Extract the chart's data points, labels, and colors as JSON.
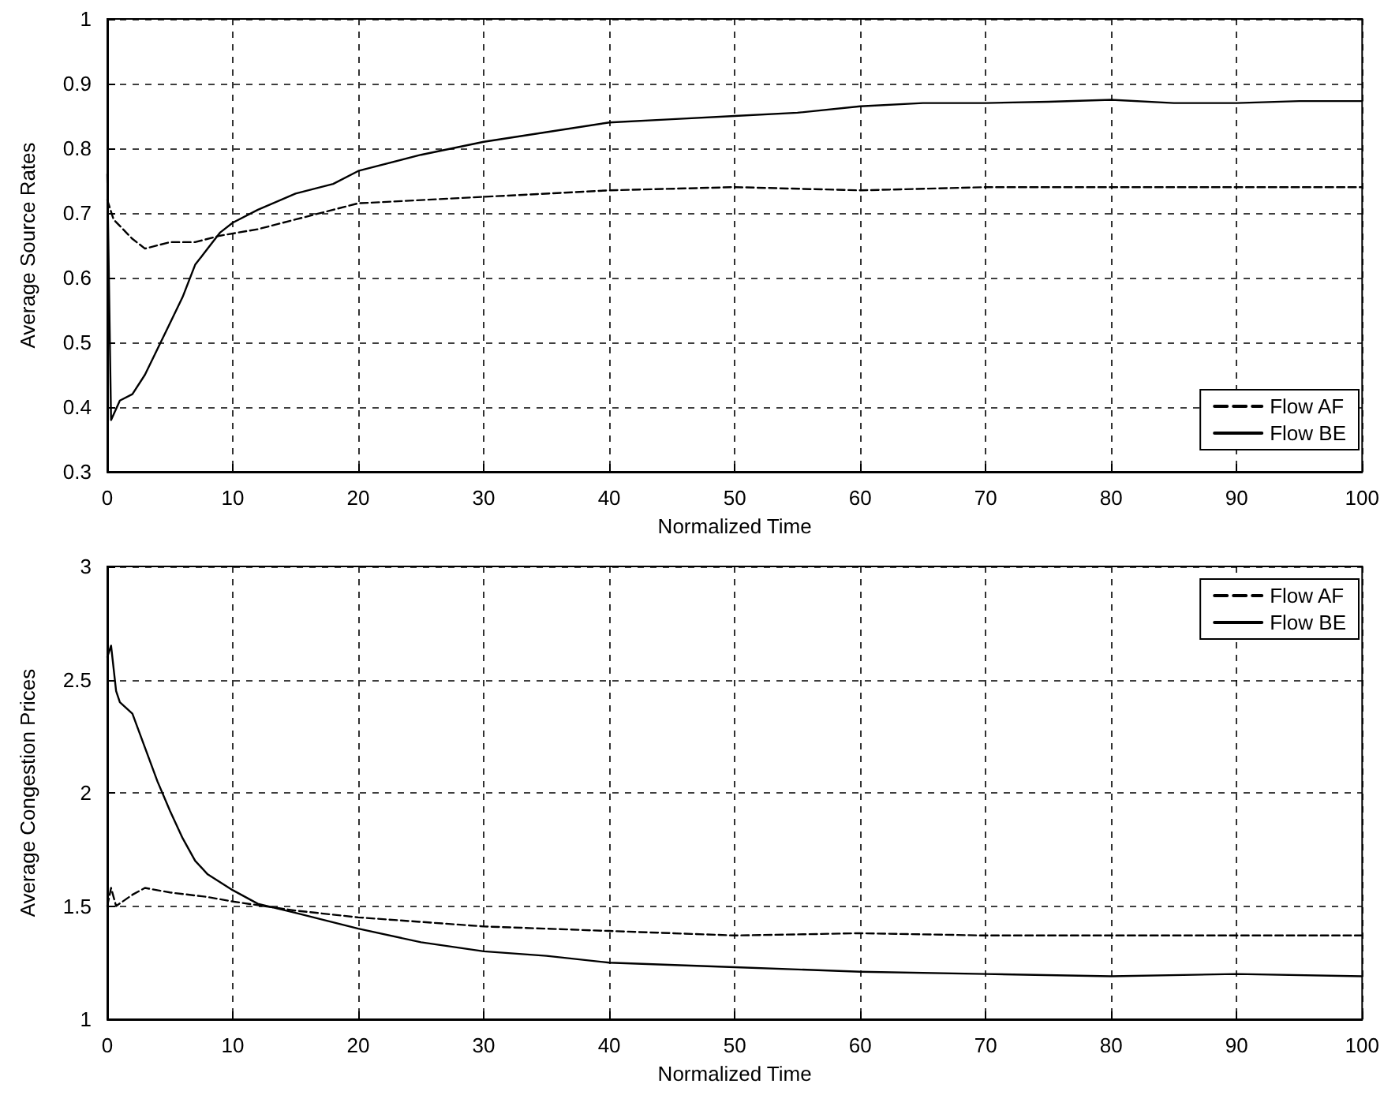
{
  "chart_data": [
    {
      "type": "line",
      "xlabel": "Normalized Time",
      "ylabel": "Average Source Rates",
      "xlim": [
        0,
        100
      ],
      "xticks": [
        0,
        10,
        20,
        30,
        40,
        50,
        60,
        70,
        80,
        90,
        100
      ],
      "ylim": [
        0.3,
        1
      ],
      "yticks": [
        0.3,
        0.4,
        0.5,
        0.6,
        0.7,
        0.8,
        0.9,
        1
      ],
      "grid": true,
      "legend": "bottom right",
      "series": [
        {
          "name": "Flow AF",
          "color": "#000000",
          "line_style": "dashed",
          "x": [
            0,
            0.5,
            1,
            2,
            3,
            4,
            5,
            7,
            9,
            12,
            15,
            18,
            20,
            25,
            30,
            40,
            50,
            60,
            70,
            80,
            90,
            100
          ],
          "values": [
            0.72,
            0.69,
            0.68,
            0.66,
            0.645,
            0.65,
            0.655,
            0.655,
            0.665,
            0.675,
            0.69,
            0.705,
            0.715,
            0.72,
            0.725,
            0.735,
            0.74,
            0.735,
            0.74,
            0.74,
            0.74,
            0.74
          ]
        },
        {
          "name": "Flow BE",
          "color": "#000000",
          "line_style": "solid",
          "x": [
            0,
            0.3,
            1,
            2,
            3,
            4,
            5,
            6,
            7,
            8,
            9,
            10,
            12,
            15,
            18,
            20,
            25,
            30,
            35,
            40,
            45,
            50,
            55,
            60,
            65,
            70,
            75,
            80,
            85,
            90,
            95,
            100
          ],
          "values": [
            0.76,
            0.38,
            0.41,
            0.42,
            0.45,
            0.49,
            0.53,
            0.57,
            0.62,
            0.645,
            0.67,
            0.685,
            0.705,
            0.73,
            0.745,
            0.765,
            0.79,
            0.81,
            0.825,
            0.84,
            0.845,
            0.85,
            0.855,
            0.865,
            0.87,
            0.87,
            0.872,
            0.875,
            0.87,
            0.87,
            0.873,
            0.873
          ]
        }
      ]
    },
    {
      "type": "line",
      "xlabel": "Normalized Time",
      "ylabel": "Average Congestion Prices",
      "xlim": [
        0,
        100
      ],
      "xticks": [
        0,
        10,
        20,
        30,
        40,
        50,
        60,
        70,
        80,
        90,
        100
      ],
      "ylim": [
        1,
        3
      ],
      "yticks": [
        1,
        1.5,
        2,
        2.5,
        3
      ],
      "grid": true,
      "legend": "top right",
      "series": [
        {
          "name": "Flow AF",
          "color": "#000000",
          "line_style": "dashed",
          "x": [
            0,
            0.3,
            0.7,
            2,
            3,
            5,
            8,
            10,
            15,
            20,
            30,
            40,
            50,
            60,
            70,
            80,
            90,
            100
          ],
          "values": [
            1.5,
            1.58,
            1.5,
            1.55,
            1.58,
            1.56,
            1.54,
            1.52,
            1.48,
            1.45,
            1.41,
            1.39,
            1.37,
            1.38,
            1.37,
            1.37,
            1.37,
            1.37
          ]
        },
        {
          "name": "Flow BE",
          "color": "#000000",
          "line_style": "solid",
          "x": [
            0,
            0.3,
            0.7,
            1,
            2,
            3,
            4,
            5,
            6,
            7,
            8,
            10,
            12,
            15,
            20,
            25,
            30,
            35,
            40,
            50,
            60,
            70,
            80,
            90,
            100
          ],
          "values": [
            2.6,
            2.65,
            2.45,
            2.4,
            2.35,
            2.2,
            2.05,
            1.92,
            1.8,
            1.7,
            1.64,
            1.57,
            1.51,
            1.47,
            1.4,
            1.34,
            1.3,
            1.28,
            1.25,
            1.23,
            1.21,
            1.2,
            1.19,
            1.2,
            1.19
          ]
        }
      ]
    }
  ]
}
